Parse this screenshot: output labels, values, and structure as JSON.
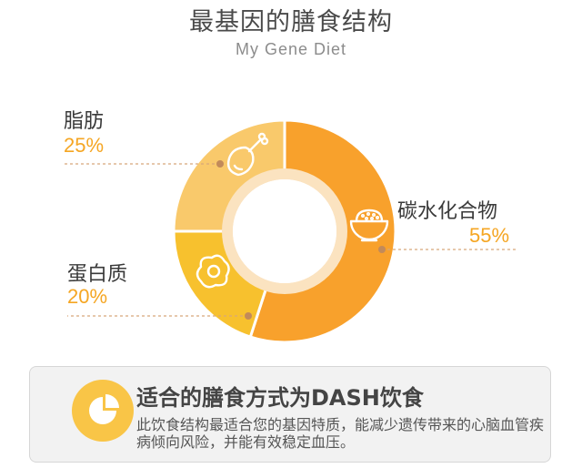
{
  "title": "最基因的膳食结构",
  "subtitle": "My Gene Diet",
  "chart_data": {
    "type": "pie",
    "style": "donut",
    "slices": [
      {
        "label": "碳水化合物",
        "percent_label": "55%",
        "value": 55,
        "color": "#f8a12c",
        "icon": "rice-bowl-icon"
      },
      {
        "label": "蛋白质",
        "percent_label": "20%",
        "value": 20,
        "color": "#f7c12e",
        "icon": "fried-egg-icon"
      },
      {
        "label": "脂肪",
        "percent_label": "25%",
        "value": 25,
        "color": "#f9c96b",
        "icon": "chicken-leg-icon"
      }
    ]
  },
  "summary": {
    "title": "适合的膳食方式为DASH饮食",
    "text": "此饮食结构最适合您的基因特质，能减少遗传带来的心脑血管疾病倾向风险，并能有效稳定血压。",
    "icon": "pie-chart-icon",
    "icon_color": "#f9c547"
  }
}
